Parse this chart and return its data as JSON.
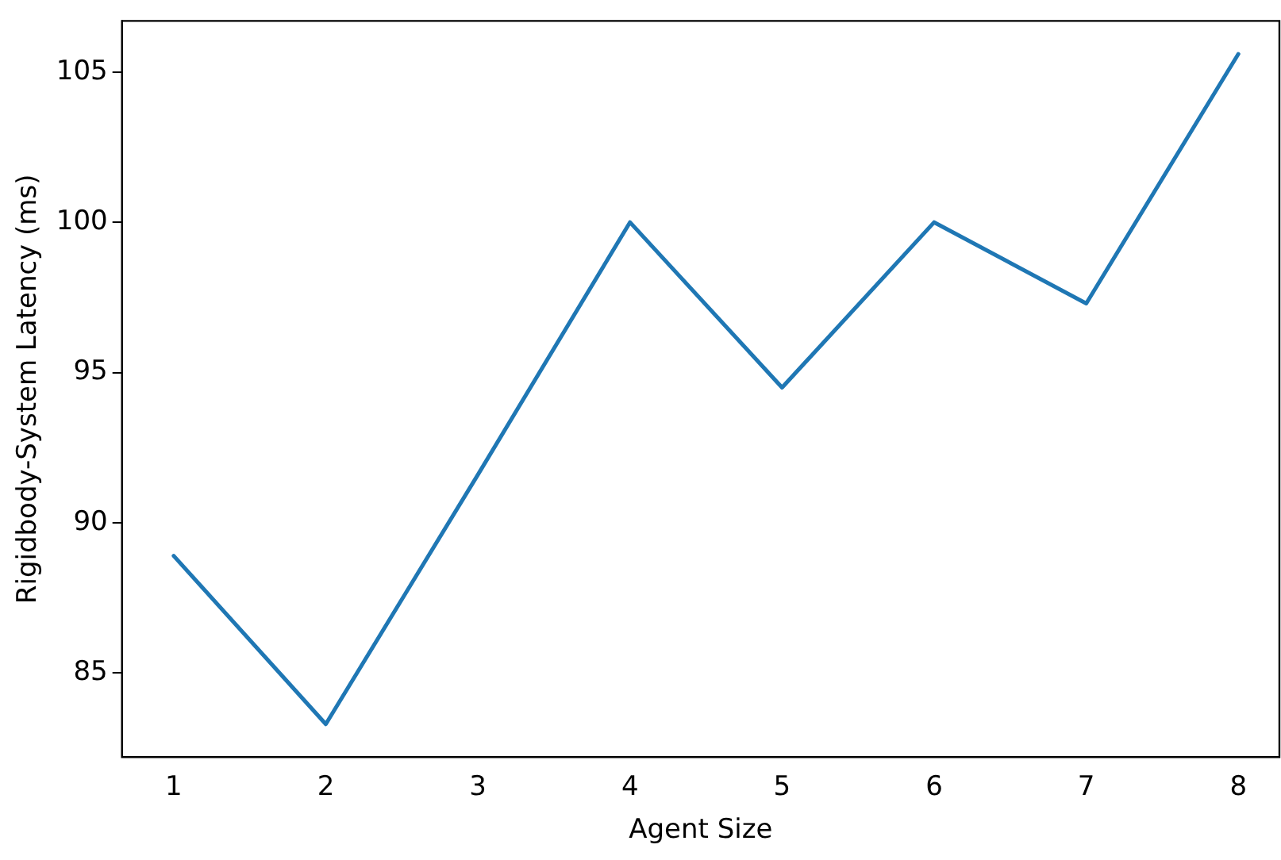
{
  "chart_data": {
    "type": "line",
    "xlabel": "Agent Size",
    "ylabel": "Rigidbody-System Latency (ms)",
    "x": [
      1,
      2,
      3,
      4,
      5,
      6,
      7,
      8
    ],
    "series": [
      {
        "color": "#1f77b4",
        "values": [
          88.9,
          83.3,
          91.6,
          100,
          94.5,
          100,
          97.3,
          105.6
        ]
      }
    ],
    "xlim": [
      0.66,
      8.27
    ],
    "xticks": [
      1,
      2,
      3,
      4,
      5,
      6,
      7,
      8
    ],
    "ylim": [
      82.2,
      106.7
    ],
    "yticks": [
      85,
      90,
      95,
      100,
      105
    ],
    "grid": false,
    "legend": false,
    "marker": "none",
    "line_style": "solid"
  }
}
